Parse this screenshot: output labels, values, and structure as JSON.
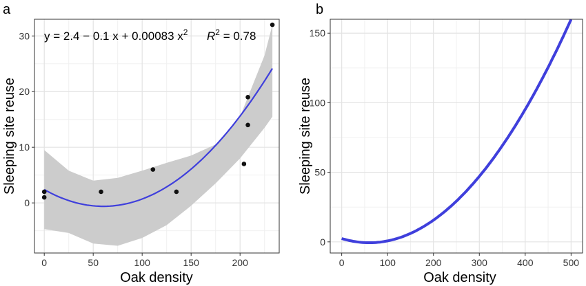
{
  "chart_data": [
    {
      "type": "scatter",
      "panel_label": "a",
      "xlabel": "Oak density",
      "ylabel": "Sleeping site reuse",
      "xlim": [
        -10,
        240
      ],
      "ylim": [
        -9,
        33
      ],
      "xticks": [
        0,
        50,
        100,
        150,
        200
      ],
      "yticks": [
        0,
        10,
        20,
        30
      ],
      "xtick_labels": [
        "0",
        "50",
        "100",
        "150",
        "200"
      ],
      "ytick_labels": [
        "0",
        "10",
        "20",
        "30"
      ],
      "grid": true,
      "points": [
        {
          "x": 0,
          "y": 2
        },
        {
          "x": 0,
          "y": 1
        },
        {
          "x": 58,
          "y": 2
        },
        {
          "x": 111,
          "y": 6
        },
        {
          "x": 135,
          "y": 2
        },
        {
          "x": 204,
          "y": 7
        },
        {
          "x": 208,
          "y": 14
        },
        {
          "x": 208,
          "y": 19
        },
        {
          "x": 233,
          "y": 32
        }
      ],
      "fit": {
        "intercept": 2.4,
        "b1": -0.1,
        "b2": 0.00083,
        "x_range": [
          0,
          233
        ],
        "color": "#3f3fdc"
      },
      "confidence_band": {
        "color": "#cccccc",
        "x": [
          0,
          25,
          50,
          75,
          100,
          125,
          150,
          175,
          200,
          225,
          233
        ],
        "lower": [
          -4.7,
          -5.4,
          -7.3,
          -7.7,
          -6.3,
          -4.0,
          -0.5,
          3.5,
          8.0,
          13.5,
          15.5
        ],
        "upper": [
          9.5,
          5.8,
          4.0,
          4.5,
          5.8,
          7.2,
          8.5,
          10.5,
          15.5,
          26.5,
          32.0
        ]
      },
      "annotation": {
        "equation": "y = 2.4 − 0.1 x + 0.00083 x",
        "equation_superscript": "2",
        "r2_label": "R",
        "r2_superscript": "2",
        "r2_value": " = 0.78"
      }
    },
    {
      "type": "line",
      "panel_label": "b",
      "xlabel": "Oak density",
      "ylabel": "Sleeping site reuse",
      "xlim": [
        -25,
        525
      ],
      "ylim": [
        -8,
        160
      ],
      "xticks": [
        0,
        100,
        200,
        300,
        400,
        500
      ],
      "yticks": [
        0,
        50,
        100,
        150
      ],
      "xtick_labels": [
        "0",
        "100",
        "200",
        "300",
        "400",
        "500"
      ],
      "ytick_labels": [
        "0",
        "50",
        "100",
        "150"
      ],
      "grid": true,
      "curve": {
        "intercept": 2.4,
        "b1": -0.1,
        "b2": 0.00083,
        "x_range": [
          0,
          500
        ],
        "color": "#3f3fdc"
      }
    }
  ]
}
